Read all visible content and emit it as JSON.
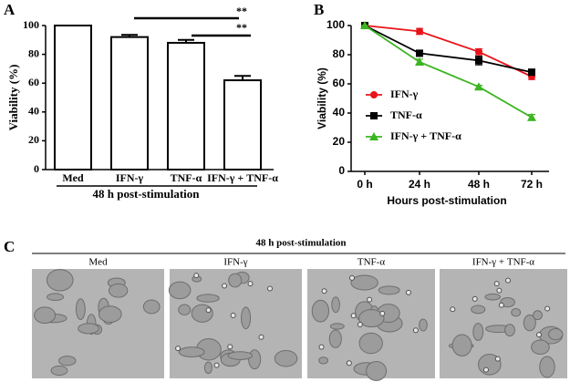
{
  "chart_data": [
    {
      "type": "bar",
      "label": "A",
      "ylabel": "Viability (%)",
      "xlabel": "48 h post-stimulation",
      "categories": [
        "Med",
        "IFN-γ",
        "TNF-α",
        "IFN-γ + TNF-α"
      ],
      "values": [
        100,
        92,
        88,
        62
      ],
      "errors": [
        0,
        1.5,
        2,
        3
      ],
      "color": "#ffffff",
      "edgecolor": "#000000",
      "ylim": [
        0,
        100
      ],
      "yticks": [
        0,
        20,
        40,
        60,
        80,
        100
      ],
      "annotations": [
        "**",
        "**"
      ]
    },
    {
      "type": "line",
      "label": "B",
      "ylabel": "Viability (%)",
      "xlabel": "Hours post-stimulation",
      "categories": [
        "0 h",
        "24 h",
        "48 h",
        "72 h"
      ],
      "series": [
        {
          "name": "IFN-γ",
          "color": "#e8141a",
          "marker": "circle",
          "values": [
            100,
            96,
            82,
            65
          ],
          "errors": [
            0,
            2,
            2,
            2
          ]
        },
        {
          "name": "TNF-α",
          "color": "#000000",
          "marker": "square",
          "values": [
            100,
            81,
            76,
            68
          ],
          "errors": [
            0,
            2,
            3,
            2
          ]
        },
        {
          "name": "IFN-γ + TNF-α",
          "color": "#3cb521",
          "marker": "triangle",
          "values": [
            100,
            75,
            58,
            37
          ],
          "errors": [
            0,
            2,
            1,
            2
          ]
        }
      ],
      "ylim": [
        0,
        100
      ],
      "yticks": [
        0,
        20,
        40,
        60,
        80,
        100
      ],
      "legend": "left"
    }
  ],
  "panel_c": {
    "label": "C",
    "title": "48 h post-stimulation",
    "images": [
      "Med",
      "IFN-γ",
      "TNF-α",
      "IFN-γ + TNF-α"
    ]
  }
}
